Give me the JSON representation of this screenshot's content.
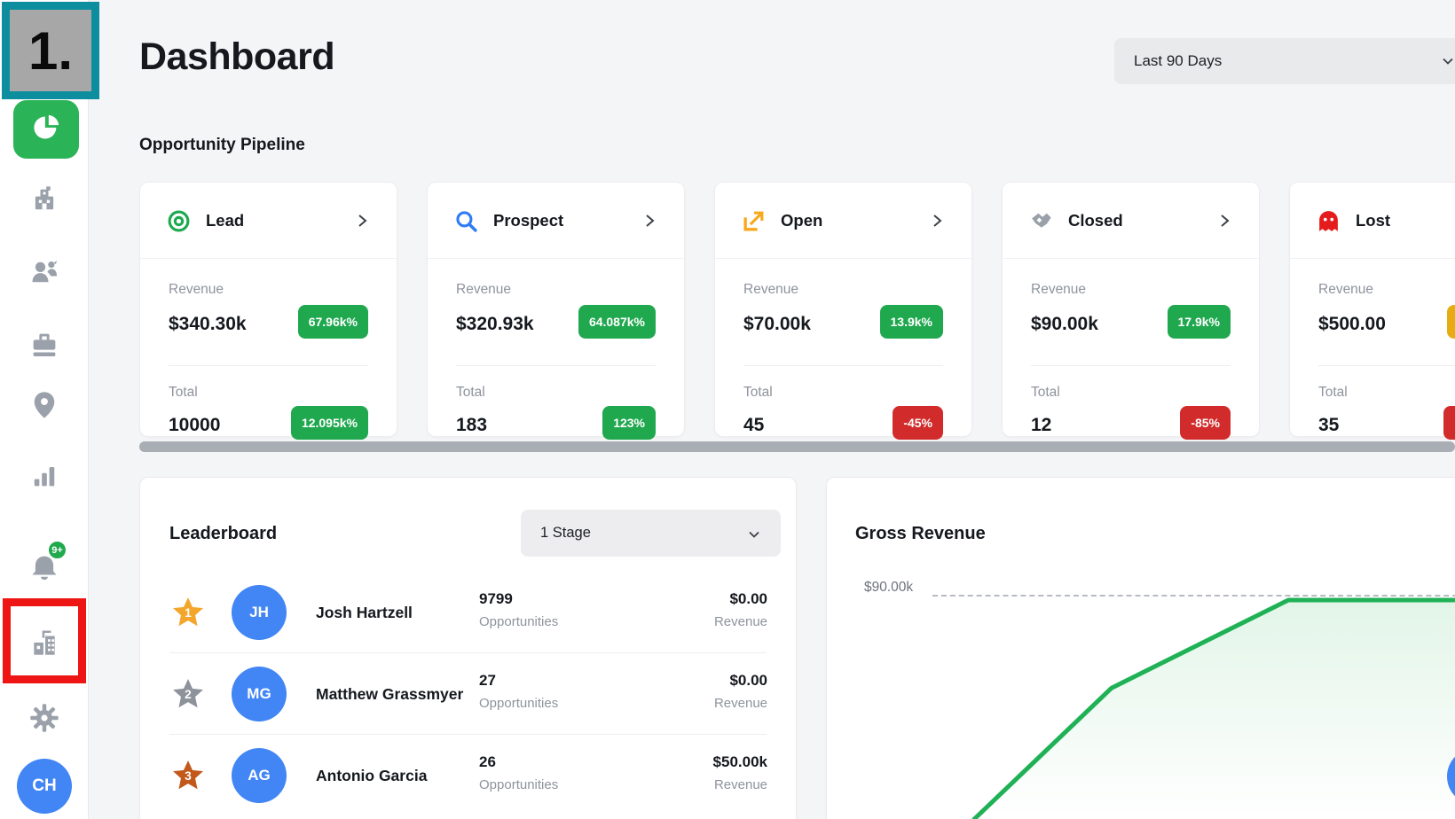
{
  "som_marker": {
    "label": "1."
  },
  "sidebar": {
    "nav_icons": [
      {
        "name": "pie-chart-icon",
        "active": true,
        "active_bg": "#2bb457"
      },
      {
        "name": "building-icon"
      },
      {
        "name": "contacts-icon"
      },
      {
        "name": "briefcase-icon"
      },
      {
        "name": "map-pin-icon"
      },
      {
        "name": "bar-chart-icon"
      },
      {
        "name": "bell-icon",
        "badge": "9+",
        "badge_color": "#21a94e"
      },
      {
        "name": "company-buildings-icon",
        "annotated": "red-box"
      },
      {
        "name": "gear-icon"
      }
    ],
    "user_avatar_initials": "CH",
    "avatar_color": "#4285f4"
  },
  "header": {
    "title": "Dashboard",
    "date_filter": "Last 90 Days"
  },
  "pipeline": {
    "section_title": "Opportunity Pipeline",
    "cards": [
      {
        "label": "Lead",
        "icon": "target-icon",
        "icon_color": "#1ca94f",
        "revenue_label": "Revenue",
        "revenue": "$340.30k",
        "revenue_badge": "67.96k%",
        "revenue_badge_color": "#20a84f",
        "total_label": "Total",
        "total": "10000",
        "total_badge": "12.095k%",
        "total_badge_color": "#20a84f"
      },
      {
        "label": "Prospect",
        "icon": "magnifier-icon",
        "icon_color": "#2e7cf6",
        "revenue_label": "Revenue",
        "revenue": "$320.93k",
        "revenue_badge": "64.087k%",
        "revenue_badge_color": "#20a84f",
        "total_label": "Total",
        "total": "183",
        "total_badge": "123%",
        "total_badge_color": "#20a84f"
      },
      {
        "label": "Open",
        "icon": "arrow-out-icon",
        "icon_color": "#f7a81b",
        "revenue_label": "Revenue",
        "revenue": "$70.00k",
        "revenue_badge": "13.9k%",
        "revenue_badge_color": "#20a84f",
        "total_label": "Total",
        "total": "45",
        "total_badge": "-45%",
        "total_badge_color": "#d22b2b"
      },
      {
        "label": "Closed",
        "icon": "handshake-icon",
        "icon_color": "#9aa0aa",
        "revenue_label": "Revenue",
        "revenue": "$90.00k",
        "revenue_badge": "17.9k%",
        "revenue_badge_color": "#20a84f",
        "total_label": "Total",
        "total": "12",
        "total_badge": "-85%",
        "total_badge_color": "#d22b2b"
      },
      {
        "label": "Lost",
        "icon": "ghost-icon",
        "icon_color": "#e51c1c",
        "revenue_label": "Revenue",
        "revenue": "$500.00",
        "revenue_badge": "",
        "revenue_badge_color": "#e7ac12",
        "total_label": "Total",
        "total": "35",
        "total_badge": "",
        "total_badge_color": "#d22b2b"
      }
    ]
  },
  "leaderboard": {
    "title": "Leaderboard",
    "stage_filter": "1 Stage",
    "rows": [
      {
        "rank": "1",
        "star_color": "#f4a62a",
        "initials": "JH",
        "name": "Josh Hartzell",
        "opportunities": "9799",
        "opps_label": "Opportunities",
        "revenue": "$0.00",
        "revenue_label": "Revenue"
      },
      {
        "rank": "2",
        "star_color": "#8d929b",
        "initials": "MG",
        "name": "Matthew Grassmyer",
        "opportunities": "27",
        "opps_label": "Opportunities",
        "revenue": "$0.00",
        "revenue_label": "Revenue"
      },
      {
        "rank": "3",
        "star_color": "#c2591b",
        "initials": "AG",
        "name": "Antonio Garcia",
        "opportunities": "26",
        "opps_label": "Opportunities",
        "revenue": "$50.00k",
        "revenue_label": "Revenue"
      }
    ]
  },
  "gross_revenue": {
    "title": "Gross Revenue",
    "y_tick_label": "$90.00k"
  },
  "chart_data": {
    "type": "area",
    "title": "Gross Revenue",
    "ylim": [
      0,
      90000
    ],
    "y_tick_labels": [
      "$90.00k"
    ],
    "gridline": {
      "value": 90000,
      "style": "dashed"
    },
    "legend": false,
    "x_axis_labels_visible": false,
    "series": [
      {
        "name": "Gross Revenue",
        "color": "#1fb155",
        "points": [
          {
            "x_frac": 0.223,
            "value": 0
          },
          {
            "x_frac": 0.433,
            "value": 54000
          },
          {
            "x_frac": 0.702,
            "value": 90000
          },
          {
            "x_frac": 1.0,
            "value": 90000
          }
        ]
      }
    ],
    "area_fill": "green-gradient"
  },
  "fab": {
    "color": "#4285f4"
  }
}
